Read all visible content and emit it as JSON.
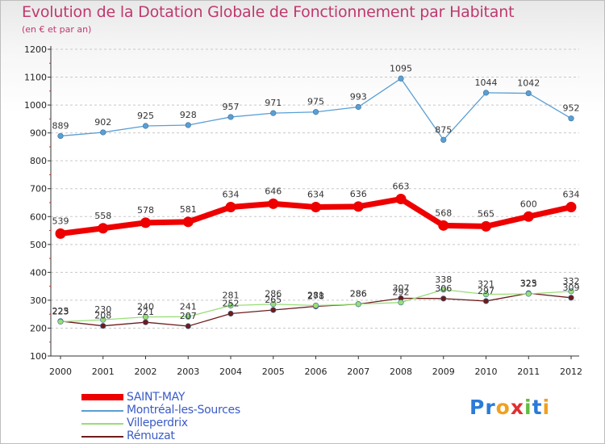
{
  "title": "Evolution de la Dotation Globale de Fonctionnement par Habitant",
  "subtitle": "(en € et par an)",
  "logo_text": "Proxiti",
  "logo_colors": [
    "#2b7bd8",
    "#2b7bd8",
    "#f0a020",
    "#e03030",
    "#5fbf3f",
    "#2b7bd8",
    "#f0a020"
  ],
  "chart_data": {
    "type": "line",
    "title": "Evolution de la Dotation Globale de Fonctionnement par Habitant",
    "subtitle": "(en € et par an)",
    "xlabel": "",
    "ylabel": "",
    "x": [
      "2000",
      "2001",
      "2002",
      "2003",
      "2004",
      "2005",
      "2006",
      "2007",
      "2008",
      "2009",
      "2010",
      "2011",
      "2012"
    ],
    "ylim": [
      100,
      1200
    ],
    "yticks": [
      "100",
      "200",
      "300",
      "400",
      "500",
      "600",
      "700",
      "800",
      "900",
      "1000",
      "1100",
      "1200"
    ],
    "grid": "horizontal dashed",
    "legend_position": "bottom-left",
    "series": [
      {
        "name": "SAINT-MAY",
        "color": "#ee0000",
        "values": [
          539,
          558,
          578,
          581,
          634,
          646,
          634,
          636,
          663,
          568,
          565,
          600,
          634
        ],
        "labels": [
          "539",
          "558",
          "578",
          "581",
          "634",
          "646",
          "634",
          "636",
          "663",
          "568",
          "565",
          "600",
          "634"
        ]
      },
      {
        "name": "Montréal-les-Sources",
        "color": "#5a9fd4",
        "values": [
          889,
          902,
          925,
          928,
          957,
          971,
          975,
          993,
          1095,
          875,
          1044,
          1042,
          952
        ],
        "labels": [
          "889",
          "902",
          "925",
          "928",
          "957",
          "971",
          "975",
          "993",
          "1095",
          "875",
          "1044",
          "1042",
          "952"
        ]
      },
      {
        "name": "Villeperdrix",
        "color": "#99dd77",
        "values": [
          223,
          230,
          240,
          241,
          281,
          286,
          281,
          286,
          292,
          338,
          321,
          323,
          332
        ],
        "labels": [
          "223",
          "230",
          "240",
          "241",
          "281",
          "286",
          "281",
          "286",
          "292",
          "338",
          "321",
          "323",
          "332"
        ]
      },
      {
        "name": "Rémuzat",
        "color": "#6e1c1c",
        "values": [
          225,
          208,
          221,
          207,
          252,
          265,
          278,
          286,
          307,
          306,
          297,
          325,
          309
        ],
        "labels": [
          "225",
          "208",
          "221",
          "207",
          "252",
          "265",
          "278",
          "286",
          "307",
          "306",
          "297",
          "325",
          "309"
        ]
      }
    ]
  }
}
